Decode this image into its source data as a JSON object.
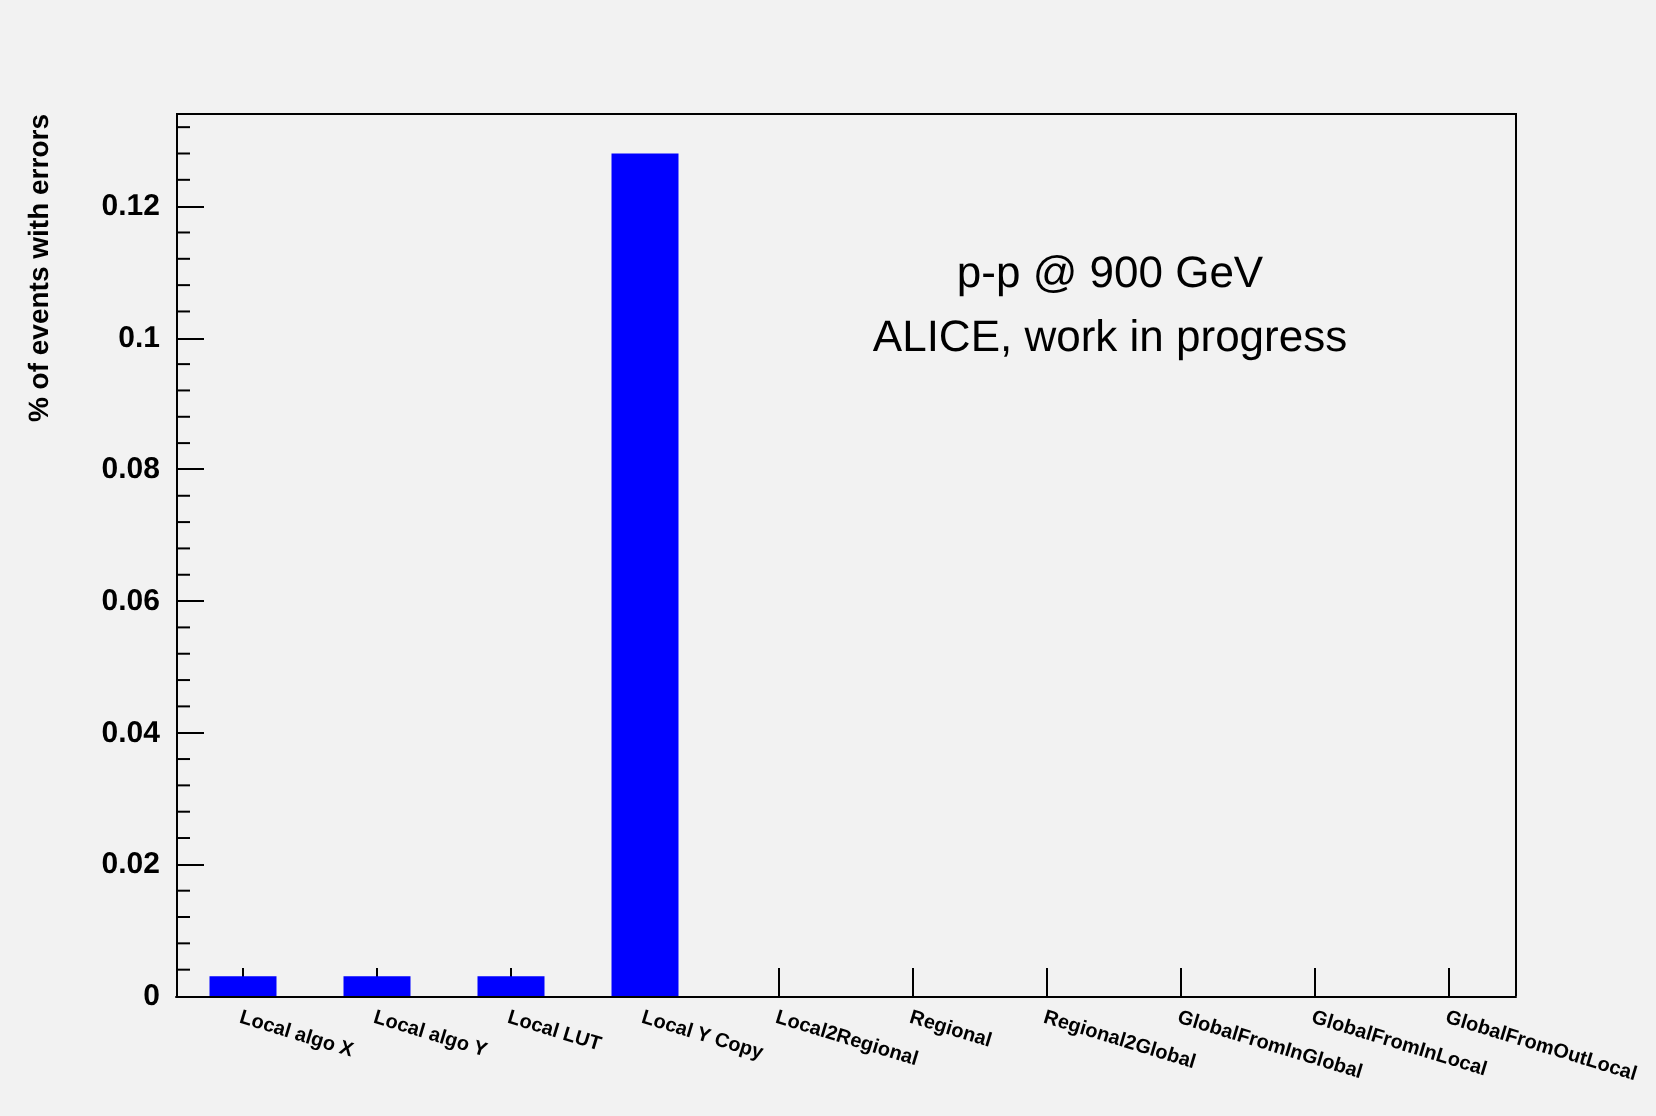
{
  "chart_data": {
    "type": "bar",
    "ylabel": "% of events with errors",
    "categories": [
      "Local algo X",
      "Local algo Y",
      "Local LUT",
      "Local Y Copy",
      "Local2Regional",
      "Regional",
      "Regional2Global",
      "GlobalFromInGlobal",
      "GlobalFromInLocal",
      "GlobalFromOutLocal"
    ],
    "values": [
      0.003,
      0.003,
      0.003,
      0.128,
      0,
      0,
      0,
      0,
      0,
      0
    ],
    "color": "#0000ff",
    "ylim": [
      0,
      0.134
    ],
    "yticks": [
      0,
      0.02,
      0.04,
      0.06,
      0.08,
      0.1,
      0.12
    ],
    "grid": false,
    "annotations": [
      "p-p @ 900 GeV",
      "ALICE, work in progress"
    ]
  }
}
